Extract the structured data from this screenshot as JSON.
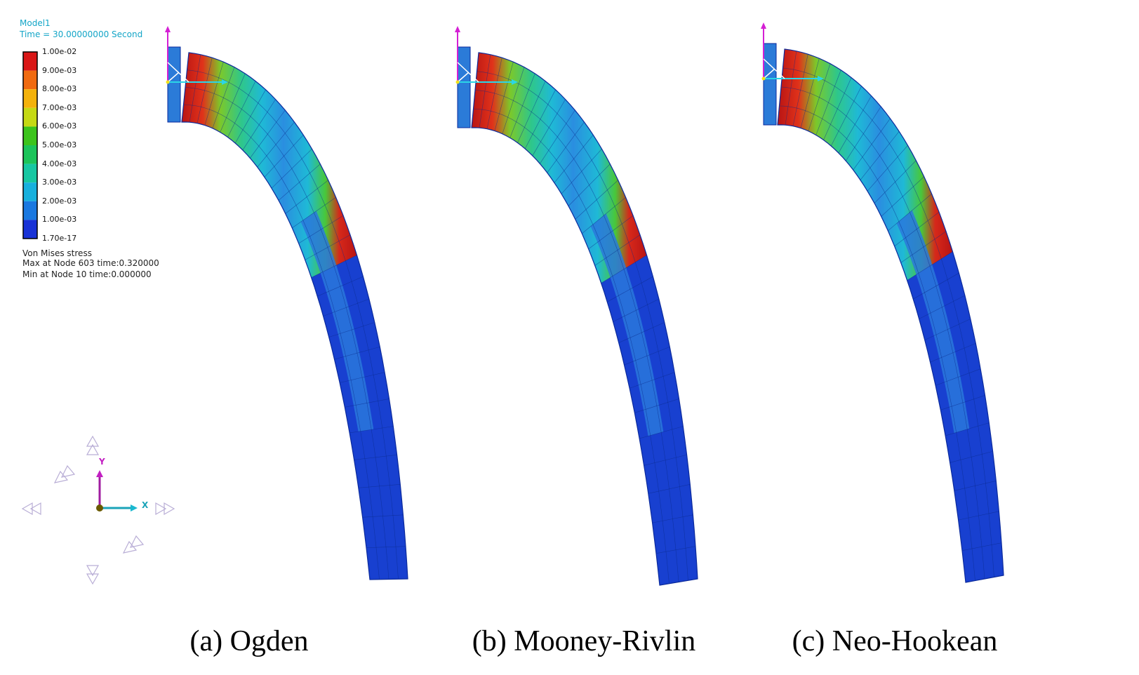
{
  "header": {
    "model": "Model1",
    "time": "Time = 30.00000000 Second"
  },
  "legend": {
    "levels": [
      "1.00e-02",
      "9.00e-03",
      "8.00e-03",
      "7.00e-03",
      "6.00e-03",
      "5.00e-03",
      "4.00e-03",
      "3.00e-03",
      "2.00e-03",
      "1.00e-03",
      "1.70e-17"
    ],
    "colors": [
      "#d91616",
      "#f06a10",
      "#f4b20b",
      "#c5d914",
      "#3cc41c",
      "#1cc45a",
      "#17c7a2",
      "#17b0dd",
      "#1a78e0",
      "#1832d6"
    ],
    "quantity": "Von Mises stress",
    "max_note": "Max at Node 603 time:0.320000",
    "min_note": "Min at Node 10 time:0.000000"
  },
  "triad_labels": {
    "x": "X",
    "y": "Y"
  },
  "panels": [
    {
      "caption": "(a) Ogden"
    },
    {
      "caption": "(b) Mooney-Rivlin"
    },
    {
      "caption": "(c) Neo-Hookean"
    }
  ]
}
